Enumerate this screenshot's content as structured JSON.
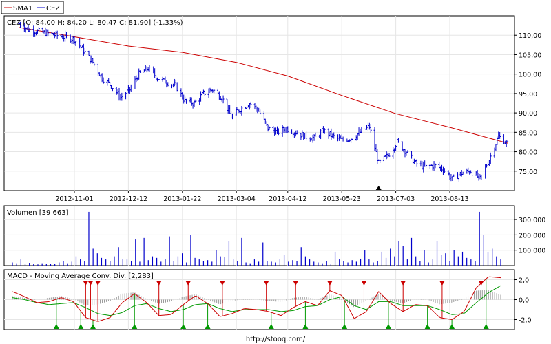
{
  "legend": [
    {
      "name": "SMA1",
      "color": "#cc0000"
    },
    {
      "name": "CEZ",
      "color": "#0000cc"
    }
  ],
  "footer": {
    "url": "http://stooq.com/"
  },
  "chart_data": [
    {
      "panel": "price",
      "type": "ohlc",
      "title": "CEZ [O: 84,00  H: 84,20  L: 80,47  C: 81,90] (-1,33%)",
      "ylim": [
        70,
        115
      ],
      "yticks": [
        75,
        80,
        85,
        90,
        95,
        100,
        105,
        110
      ],
      "ytick_labels": [
        "75,00",
        "80,00",
        "85,00",
        "90,00",
        "95,00",
        "100,00",
        "105,00",
        "110,00"
      ],
      "xticks": [
        "2012-11-01",
        "2012-12-12",
        "2013-01-22",
        "2013-03-04",
        "2013-04-12",
        "2013-05-23",
        "2013-07-03",
        "2013-08-13"
      ],
      "close_series": {
        "name": "CEZ",
        "color": "#0000cc",
        "points": [
          [
            "2012-09-20",
            113.0
          ],
          [
            "2012-09-27",
            111.5
          ],
          [
            "2012-10-04",
            111.0
          ],
          [
            "2012-10-11",
            110.5
          ],
          [
            "2012-10-18",
            110.0
          ],
          [
            "2012-10-25",
            109.5
          ],
          [
            "2012-11-01",
            109.0
          ],
          [
            "2012-11-08",
            106.0
          ],
          [
            "2012-11-15",
            103.0
          ],
          [
            "2012-11-22",
            99.0
          ],
          [
            "2012-11-29",
            97.0
          ],
          [
            "2012-12-06",
            94.0
          ],
          [
            "2012-12-13",
            96.0
          ],
          [
            "2012-12-20",
            100.0
          ],
          [
            "2012-12-27",
            101.5
          ],
          [
            "2013-01-03",
            99.0
          ],
          [
            "2013-01-10",
            98.0
          ],
          [
            "2013-01-17",
            97.0
          ],
          [
            "2013-01-24",
            93.0
          ],
          [
            "2013-01-31",
            92.5
          ],
          [
            "2013-02-07",
            95.0
          ],
          [
            "2013-02-14",
            96.0
          ],
          [
            "2013-02-21",
            94.0
          ],
          [
            "2013-02-28",
            89.0
          ],
          [
            "2013-03-07",
            91.0
          ],
          [
            "2013-03-14",
            92.5
          ],
          [
            "2013-03-21",
            90.5
          ],
          [
            "2013-03-28",
            86.0
          ],
          [
            "2013-04-04",
            85.0
          ],
          [
            "2013-04-11",
            86.0
          ],
          [
            "2013-04-18",
            85.0
          ],
          [
            "2013-04-25",
            84.0
          ],
          [
            "2013-05-02",
            83.5
          ],
          [
            "2013-05-09",
            85.5
          ],
          [
            "2013-05-16",
            84.0
          ],
          [
            "2013-05-23",
            83.0
          ],
          [
            "2013-05-30",
            83.5
          ],
          [
            "2013-06-06",
            85.0
          ],
          [
            "2013-06-13",
            86.5
          ],
          [
            "2013-06-20",
            77.0
          ],
          [
            "2013-06-27",
            79.0
          ],
          [
            "2013-07-04",
            82.5
          ],
          [
            "2013-07-11",
            80.0
          ],
          [
            "2013-07-18",
            77.0
          ],
          [
            "2013-07-25",
            76.0
          ],
          [
            "2013-08-01",
            76.5
          ],
          [
            "2013-08-08",
            75.5
          ],
          [
            "2013-08-15",
            73.0
          ],
          [
            "2013-08-22",
            74.5
          ],
          [
            "2013-08-29",
            75.0
          ],
          [
            "2013-09-05",
            73.0
          ],
          [
            "2013-09-12",
            78.0
          ],
          [
            "2013-09-19",
            84.0
          ],
          [
            "2013-09-26",
            81.9
          ]
        ]
      },
      "sma_series": {
        "name": "SMA1",
        "color": "#cc0000",
        "points": [
          [
            "2012-09-20",
            112.0
          ],
          [
            "2012-11-01",
            109.6
          ],
          [
            "2012-12-12",
            107.2
          ],
          [
            "2013-01-22",
            105.6
          ],
          [
            "2013-03-04",
            103.0
          ],
          [
            "2013-04-12",
            99.5
          ],
          [
            "2013-05-23",
            94.5
          ],
          [
            "2013-07-03",
            89.8
          ],
          [
            "2013-08-13",
            86.3
          ],
          [
            "2013-09-26",
            82.2
          ]
        ]
      },
      "markers": [
        {
          "date": "2013-06-20",
          "shape": "triangle-up"
        }
      ]
    },
    {
      "panel": "volume",
      "type": "bar",
      "title": "Volumen [39 663]",
      "ylim": [
        0,
        390000
      ],
      "yticks": [
        100000,
        200000,
        300000
      ],
      "ytick_labels": [
        "100 000",
        "200 000",
        "300 000"
      ],
      "values": [
        20000,
        15000,
        40000,
        10000,
        18000,
        12000,
        8000,
        15000,
        10000,
        12000,
        9000,
        20000,
        30000,
        15000,
        25000,
        60000,
        40000,
        30000,
        350000,
        110000,
        80000,
        50000,
        40000,
        30000,
        60000,
        120000,
        40000,
        45000,
        30000,
        170000,
        25000,
        180000,
        35000,
        60000,
        50000,
        25000,
        40000,
        190000,
        30000,
        60000,
        80000,
        20000,
        200000,
        50000,
        40000,
        30000,
        35000,
        25000,
        100000,
        60000,
        55000,
        160000,
        40000,
        30000,
        180000,
        20000,
        15000,
        40000,
        25000,
        150000,
        30000,
        25000,
        20000,
        45000,
        70000,
        25000,
        35000,
        30000,
        120000,
        60000,
        40000,
        25000,
        20000,
        15000,
        30000,
        10000,
        90000,
        40000,
        30000,
        20000,
        35000,
        25000,
        45000,
        100000,
        40000,
        20000,
        30000,
        90000,
        50000,
        110000,
        60000,
        160000,
        130000,
        40000,
        180000,
        60000,
        30000,
        100000,
        20000,
        40000,
        160000,
        70000,
        80000,
        30000,
        100000,
        60000,
        90000,
        50000,
        40000,
        30000,
        350000,
        200000,
        90000,
        110000,
        60000,
        40000
      ]
    },
    {
      "panel": "macd",
      "type": "line",
      "title": "MACD - Moving Average Conv. Div. [2,283]",
      "ylim": [
        -3,
        3
      ],
      "yticks": [
        -2,
        0,
        2
      ],
      "ytick_labels": [
        "-2,0",
        "0,0",
        "2,0"
      ],
      "series": [
        {
          "color": "#cc0000",
          "values": [
            0.8,
            0.3,
            -0.3,
            -0.2,
            0.2,
            -0.2,
            -1.8,
            -2.2,
            -1.8,
            -0.3,
            0.6,
            -0.3,
            -1.6,
            -1.5,
            -0.5,
            0.4,
            -0.4,
            -1.7,
            -1.4,
            -0.9,
            -1.0,
            -1.2,
            -1.6,
            -0.8,
            -0.2,
            -0.6,
            0.9,
            0.4,
            -1.9,
            -1.2,
            0.8,
            -0.4,
            -1.2,
            -0.5,
            -0.6,
            -1.8,
            -2.0,
            -1.2,
            1.2,
            2.3,
            2.2
          ]
        },
        {
          "color": "#009900",
          "values": [
            0.2,
            0.0,
            -0.3,
            -0.5,
            -0.4,
            -0.3,
            -0.8,
            -1.4,
            -1.6,
            -1.3,
            -0.6,
            -0.4,
            -0.9,
            -1.2,
            -1.0,
            -0.5,
            -0.4,
            -0.9,
            -1.2,
            -1.0,
            -1.0,
            -1.0,
            -1.2,
            -1.1,
            -0.7,
            -0.6,
            0.0,
            0.3,
            -0.6,
            -1.0,
            -0.2,
            -0.2,
            -0.6,
            -0.6,
            -0.6,
            -1.0,
            -1.5,
            -1.4,
            -0.3,
            0.7,
            1.4
          ]
        }
      ],
      "signals": {
        "sell_positions": [
          0.15,
          0.16,
          0.175,
          0.3,
          0.36,
          0.43,
          0.52,
          0.58,
          0.65,
          0.72,
          0.8,
          0.88,
          0.96
        ],
        "buy_positions": [
          0.09,
          0.14,
          0.165,
          0.25,
          0.35,
          0.4,
          0.53,
          0.6,
          0.68,
          0.77,
          0.85,
          0.9,
          0.97
        ]
      }
    }
  ]
}
